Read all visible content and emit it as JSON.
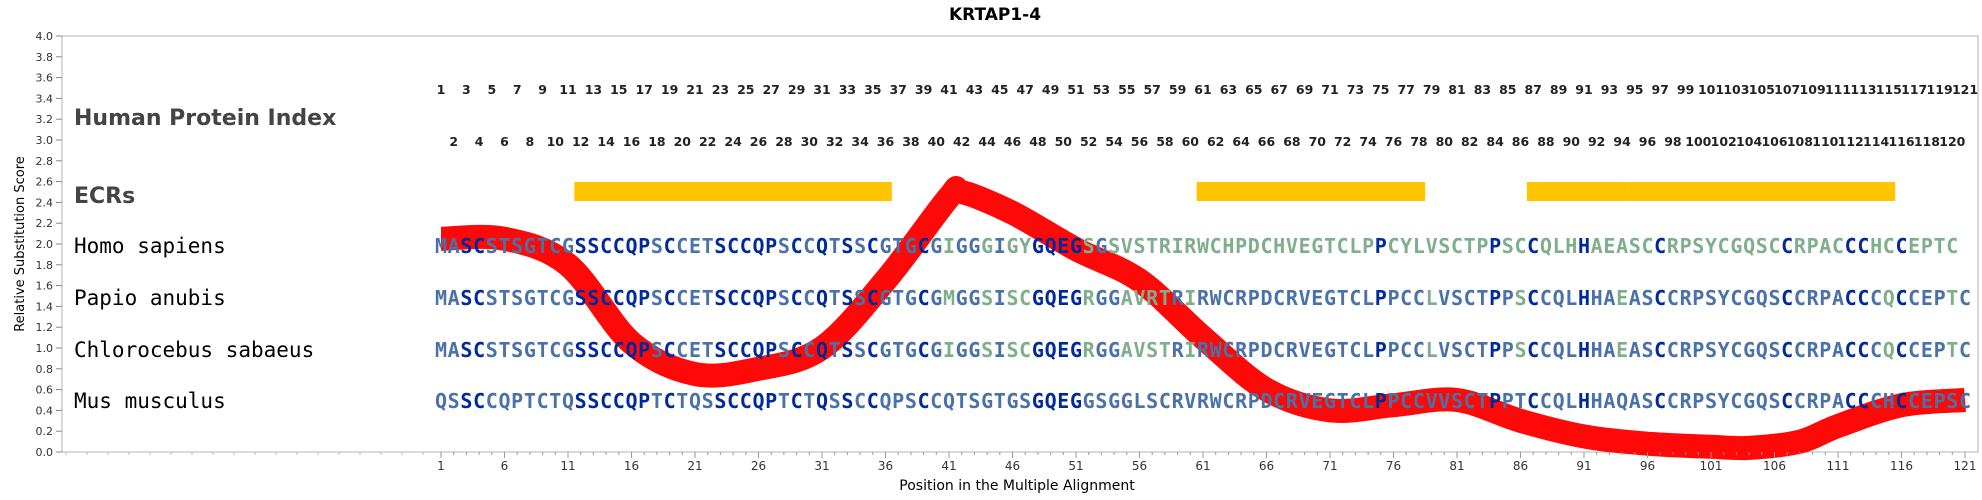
{
  "chart_data": {
    "type": "line",
    "title": "KRTAP1-4",
    "xlabel": "Position in the Multiple Alignment",
    "ylabel": "Relative Substitution Score",
    "xlim": [
      1,
      121
    ],
    "ylim": [
      0.0,
      4.0
    ],
    "y_ticks": [
      "0.0",
      "0.2",
      "0.4",
      "0.6",
      "0.8",
      "1.0",
      "1.2",
      "1.4",
      "1.6",
      "1.8",
      "2.0",
      "2.2",
      "2.4",
      "2.6",
      "2.8",
      "3.0",
      "3.2",
      "3.4",
      "3.6",
      "3.8",
      "4.0"
    ],
    "x_ticks": [
      1,
      6,
      11,
      16,
      21,
      26,
      31,
      36,
      41,
      46,
      51,
      56,
      61,
      66,
      71,
      76,
      81,
      86,
      91,
      96,
      101,
      106,
      111,
      116,
      121
    ],
    "series": [
      {
        "color": "#ff0000",
        "x": [
          1,
          6,
          11,
          16,
          21,
          26,
          31,
          36,
          41,
          42,
          46,
          51,
          56,
          61,
          66,
          71,
          76,
          81,
          86,
          91,
          96,
          101,
          104,
          108,
          111,
          116,
          121
        ],
        "y": [
          2.05,
          2.05,
          1.8,
          1.05,
          0.75,
          0.8,
          1.0,
          1.65,
          2.45,
          2.5,
          2.3,
          1.95,
          1.65,
          1.1,
          0.6,
          0.4,
          0.45,
          0.5,
          0.3,
          0.15,
          0.08,
          0.05,
          0.04,
          0.1,
          0.25,
          0.45,
          0.5
        ]
      }
    ],
    "row_labels": {
      "human_protein_index": "Human Protein Index",
      "ecrs": "ECRs"
    },
    "human_index_top": [
      "1",
      "3",
      "5",
      "7",
      "9",
      "11",
      "13",
      "15",
      "17",
      "19",
      "21",
      "23",
      "25",
      "27",
      "29",
      "31",
      "33",
      "35",
      "37",
      "39",
      "41",
      "43",
      "45",
      "47",
      "49",
      "51",
      "53",
      "55",
      "57",
      "59",
      "61",
      "63",
      "65",
      "67",
      "69",
      "71",
      "73",
      "75",
      "77",
      "79",
      "81",
      "83",
      "85",
      "87",
      "89",
      "91",
      "93",
      "95",
      "97",
      "99",
      "101",
      "103",
      "105",
      "107",
      "109",
      "111",
      "113",
      "115",
      "117",
      "119",
      "121"
    ],
    "human_index_bottom": [
      "2",
      "4",
      "6",
      "8",
      "10",
      "12",
      "14",
      "16",
      "18",
      "20",
      "22",
      "24",
      "26",
      "28",
      "30",
      "32",
      "34",
      "36",
      "38",
      "40",
      "42",
      "44",
      "46",
      "48",
      "50",
      "52",
      "54",
      "56",
      "58",
      "60",
      "62",
      "64",
      "66",
      "68",
      "70",
      "72",
      "74",
      "76",
      "78",
      "80",
      "82",
      "84",
      "86",
      "88",
      "90",
      "92",
      "94",
      "96",
      "98",
      "100",
      "102",
      "104",
      "106",
      "108",
      "110",
      "112",
      "114",
      "116",
      "118",
      "120"
    ],
    "ecr_ranges": [
      [
        12,
        36
      ],
      [
        61,
        78
      ],
      [
        87,
        94
      ],
      [
        95,
        115
      ]
    ],
    "ecr_color": "#ffc400",
    "species": [
      {
        "name": "Homo sapiens",
        "sequence": "MASCSTSGTCGSSCCQPSCCETSCCQPSCCQTSSCGTGCGIGGGIGYGQEGSGSVSTRIRWCHPDCHVEGTCLPPCYLVSCTPPSCCQLHHAEASCCRPSYCGQSCCRPACCCHCCEPTC"
      },
      {
        "name": "Papio anubis",
        "sequence": "MASCSTSGTCGSSCCQPSCCETSCCQPSCCQTSSCGTGCGMGGSISCGQEGRGGAVRTRIRWCRPDCRVEGTCLPPCCLVSCTPPSCCQLHHAEASCCRPSYCGQSCCRPACCCQCCEPTC"
      },
      {
        "name": "Chlorocebus sabaeus",
        "sequence": "MASCSTSGTCGSSCCQPSCCETSCCQPSCCQTSSCGTGCGIGGSISCGQEGRGGAVSTRIRWCRPDCRVEGTCLPPCCLVSCTPPSCCQLHHAEASCCRPSYCGQSCCRPACCCQCCEPTC"
      },
      {
        "name": "Mus musculus",
        "sequence": "QSSCCQPTCTQSSCCQPTCTQSSCCQPTCTQSSCCQPSCCQTSGTGSGQEGGSGGLSCRVRWCRPDCRVEGTCLPPCCVVSCTPPTCCQLHHAQASCCRPSYCGQSCCRPACCCHCCEPSC"
      }
    ],
    "colors": {
      "high": "#002a9b",
      "mid": "#4a72a8",
      "low": "#7fae8c",
      "axis": "#555555"
    }
  }
}
